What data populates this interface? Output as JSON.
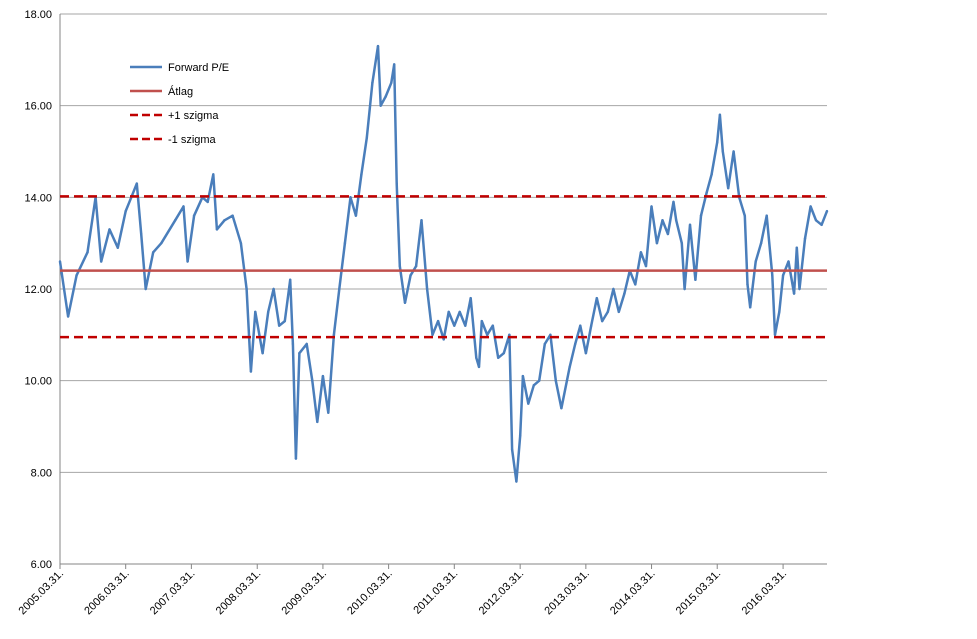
{
  "chart_data": {
    "type": "line",
    "title": "",
    "xlabel": "",
    "ylabel": "",
    "ylim": [
      6,
      18
    ],
    "y_ticks": [
      6,
      8,
      10,
      12,
      14,
      16,
      18
    ],
    "y_tick_labels": [
      "6.00",
      "8.00",
      "10.00",
      "12.00",
      "14.00",
      "16.00",
      "18.00"
    ],
    "x_range": [
      "2005-03-31",
      "2016-11-30"
    ],
    "x_ticks": [
      "2005-03-31",
      "2006-03-31",
      "2007-03-31",
      "2008-03-31",
      "2009-03-31",
      "2010-03-31",
      "2011-03-31",
      "2012-03-31",
      "2013-03-31",
      "2014-03-31",
      "2015-03-31",
      "2016-03-31"
    ],
    "x_tick_labels": [
      "2005.03.31.",
      "2006.03.31.",
      "2007.03.31.",
      "2008.03.31.",
      "2009.03.31.",
      "2010.03.31.",
      "2011.03.31.",
      "2012.03.31.",
      "2013.03.31.",
      "2014.03.31.",
      "2015.03.31.",
      "2016.03.31."
    ],
    "grid": "horizontal",
    "legend_position": "top-left",
    "series": [
      {
        "name": "Forward P/E",
        "kind": "line",
        "color": "#4a7ebb",
        "points": [
          [
            "2005-03-31",
            12.6
          ],
          [
            "2005-05-15",
            11.4
          ],
          [
            "2005-07-01",
            12.3
          ],
          [
            "2005-08-31",
            12.8
          ],
          [
            "2005-10-15",
            14.0
          ],
          [
            "2005-11-15",
            12.6
          ],
          [
            "2005-12-31",
            13.3
          ],
          [
            "2006-02-15",
            12.9
          ],
          [
            "2006-03-31",
            13.7
          ],
          [
            "2006-05-01",
            14.0
          ],
          [
            "2006-06-01",
            14.3
          ],
          [
            "2006-06-25",
            13.2
          ],
          [
            "2006-07-20",
            12.0
          ],
          [
            "2006-08-31",
            12.8
          ],
          [
            "2006-10-15",
            13.0
          ],
          [
            "2006-12-31",
            13.5
          ],
          [
            "2007-02-15",
            13.8
          ],
          [
            "2007-03-10",
            12.6
          ],
          [
            "2007-04-15",
            13.6
          ],
          [
            "2007-05-31",
            14.0
          ],
          [
            "2007-06-30",
            13.9
          ],
          [
            "2007-07-31",
            14.5
          ],
          [
            "2007-08-20",
            13.3
          ],
          [
            "2007-10-01",
            13.5
          ],
          [
            "2007-11-15",
            13.6
          ],
          [
            "2007-12-31",
            13.0
          ],
          [
            "2008-02-01",
            12.0
          ],
          [
            "2008-02-25",
            10.2
          ],
          [
            "2008-03-20",
            11.5
          ],
          [
            "2008-04-30",
            10.6
          ],
          [
            "2008-05-31",
            11.5
          ],
          [
            "2008-06-30",
            12.0
          ],
          [
            "2008-07-31",
            11.2
          ],
          [
            "2008-08-31",
            11.3
          ],
          [
            "2008-09-30",
            12.2
          ],
          [
            "2008-10-15",
            10.8
          ],
          [
            "2008-11-01",
            8.3
          ],
          [
            "2008-11-20",
            10.6
          ],
          [
            "2008-12-31",
            10.8
          ],
          [
            "2009-01-31",
            10.0
          ],
          [
            "2009-02-28",
            9.1
          ],
          [
            "2009-03-31",
            10.1
          ],
          [
            "2009-04-30",
            9.3
          ],
          [
            "2009-05-31",
            11.0
          ],
          [
            "2009-06-30",
            12.0
          ],
          [
            "2009-07-31",
            13.0
          ],
          [
            "2009-08-31",
            14.0
          ],
          [
            "2009-09-30",
            13.6
          ],
          [
            "2009-10-31",
            14.5
          ],
          [
            "2009-11-30",
            15.3
          ],
          [
            "2009-12-31",
            16.5
          ],
          [
            "2010-01-31",
            17.3
          ],
          [
            "2010-02-15",
            16.0
          ],
          [
            "2010-03-15",
            16.2
          ],
          [
            "2010-04-15",
            16.5
          ],
          [
            "2010-05-01",
            16.9
          ],
          [
            "2010-05-15",
            14.3
          ],
          [
            "2010-06-01",
            12.5
          ],
          [
            "2010-06-30",
            11.7
          ],
          [
            "2010-07-31",
            12.3
          ],
          [
            "2010-08-31",
            12.5
          ],
          [
            "2010-09-30",
            13.5
          ],
          [
            "2010-10-31",
            12.0
          ],
          [
            "2010-11-30",
            11.0
          ],
          [
            "2010-12-31",
            11.3
          ],
          [
            "2011-01-31",
            10.9
          ],
          [
            "2011-02-28",
            11.5
          ],
          [
            "2011-03-31",
            11.2
          ],
          [
            "2011-04-30",
            11.5
          ],
          [
            "2011-05-31",
            11.2
          ],
          [
            "2011-06-30",
            11.8
          ],
          [
            "2011-07-31",
            10.5
          ],
          [
            "2011-08-15",
            10.3
          ],
          [
            "2011-08-31",
            11.3
          ],
          [
            "2011-09-30",
            11.0
          ],
          [
            "2011-10-31",
            11.2
          ],
          [
            "2011-11-30",
            10.5
          ],
          [
            "2011-12-31",
            10.6
          ],
          [
            "2012-01-31",
            11.0
          ],
          [
            "2012-02-15",
            8.5
          ],
          [
            "2012-03-10",
            7.8
          ],
          [
            "2012-03-31",
            8.8
          ],
          [
            "2012-04-15",
            10.1
          ],
          [
            "2012-05-15",
            9.5
          ],
          [
            "2012-06-15",
            9.9
          ],
          [
            "2012-07-15",
            10.0
          ],
          [
            "2012-08-15",
            10.8
          ],
          [
            "2012-09-15",
            11.0
          ],
          [
            "2012-10-15",
            10.0
          ],
          [
            "2012-11-15",
            9.4
          ],
          [
            "2012-12-31",
            10.3
          ],
          [
            "2013-01-31",
            10.8
          ],
          [
            "2013-02-28",
            11.2
          ],
          [
            "2013-03-31",
            10.6
          ],
          [
            "2013-04-30",
            11.2
          ],
          [
            "2013-05-31",
            11.8
          ],
          [
            "2013-06-30",
            11.3
          ],
          [
            "2013-07-31",
            11.5
          ],
          [
            "2013-08-31",
            12.0
          ],
          [
            "2013-09-30",
            11.5
          ],
          [
            "2013-10-31",
            11.9
          ],
          [
            "2013-11-30",
            12.4
          ],
          [
            "2013-12-31",
            12.1
          ],
          [
            "2014-01-31",
            12.8
          ],
          [
            "2014-02-28",
            12.5
          ],
          [
            "2014-03-31",
            13.8
          ],
          [
            "2014-04-30",
            13.0
          ],
          [
            "2014-05-31",
            13.5
          ],
          [
            "2014-06-30",
            13.2
          ],
          [
            "2014-07-31",
            13.9
          ],
          [
            "2014-08-15",
            13.5
          ],
          [
            "2014-09-15",
            13.0
          ],
          [
            "2014-10-01",
            12.0
          ],
          [
            "2014-10-31",
            13.4
          ],
          [
            "2014-11-30",
            12.2
          ],
          [
            "2014-12-31",
            13.6
          ],
          [
            "2015-01-31",
            14.1
          ],
          [
            "2015-02-28",
            14.5
          ],
          [
            "2015-03-31",
            15.2
          ],
          [
            "2015-04-15",
            15.8
          ],
          [
            "2015-05-01",
            15.0
          ],
          [
            "2015-05-31",
            14.2
          ],
          [
            "2015-06-30",
            15.0
          ],
          [
            "2015-07-31",
            14.0
          ],
          [
            "2015-08-31",
            13.6
          ],
          [
            "2015-09-15",
            12.1
          ],
          [
            "2015-09-30",
            11.6
          ],
          [
            "2015-10-31",
            12.6
          ],
          [
            "2015-11-30",
            13.0
          ],
          [
            "2015-12-31",
            13.6
          ],
          [
            "2016-01-31",
            12.3
          ],
          [
            "2016-02-15",
            11.0
          ],
          [
            "2016-03-10",
            11.5
          ],
          [
            "2016-03-31",
            12.3
          ],
          [
            "2016-04-30",
            12.6
          ],
          [
            "2016-05-31",
            11.9
          ],
          [
            "2016-06-15",
            12.9
          ],
          [
            "2016-06-30",
            12.0
          ],
          [
            "2016-07-31",
            13.1
          ],
          [
            "2016-08-31",
            13.8
          ],
          [
            "2016-09-30",
            13.5
          ],
          [
            "2016-10-31",
            13.4
          ],
          [
            "2016-11-30",
            13.7
          ]
        ]
      },
      {
        "name": "Átlag",
        "kind": "hline",
        "color": "#c0504d",
        "value": 12.4
      },
      {
        "name": "+1 szigma",
        "kind": "hline-dashed",
        "color": "#c00000",
        "value": 14.02
      },
      {
        "name": "-1 szigma",
        "kind": "hline-dashed",
        "color": "#c00000",
        "value": 10.95
      }
    ]
  }
}
